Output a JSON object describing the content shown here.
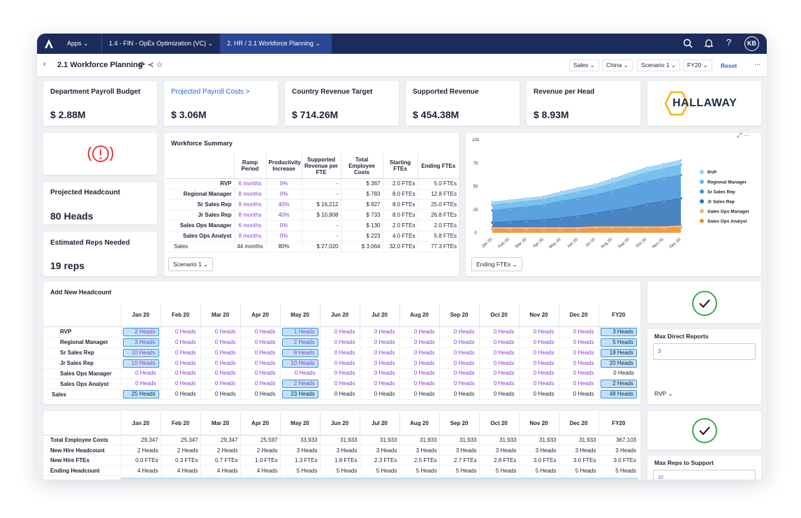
{
  "nav": {
    "apps": "Apps",
    "tabs": [
      "1.4 - FIN - OpEx Optimization (VC)",
      "2. HR / 2.1 Workforce Planning"
    ],
    "user": "KB"
  },
  "toolbar": {
    "title": "2.1 Workforce Planning",
    "filters": [
      "Sales",
      "China",
      "Scenario 1",
      "FY20"
    ],
    "reset": "Reset",
    "more": "···"
  },
  "kpis": [
    {
      "label": "Department Payroll Budget",
      "value": "$ 2.88M"
    },
    {
      "label": "Projected Payroll Costs >",
      "value": "$ 3.06M"
    },
    {
      "label": "Country Revenue Target",
      "value": "$ 714.26M"
    },
    {
      "label": "Supported Revenue",
      "value": "$ 454.38M"
    },
    {
      "label": "Revenue per Head",
      "value": "$ 8.93M"
    }
  ],
  "logo": "HALLAWAY",
  "metrics": [
    {
      "label": "Projected Headcount",
      "value": "80 Heads"
    },
    {
      "label": "Estimated Reps Needed",
      "value": "19 reps"
    }
  ],
  "workforce_summary": {
    "title": "Workforce Summary",
    "columns": [
      "Ramp Period",
      "Productivity Increase",
      "Supported Revenue per FTE",
      "Total Employee Costs",
      "Starting FTEs",
      "Ending FTEs"
    ],
    "rows": [
      {
        "label": "RVP",
        "cells": [
          "6 months",
          "0%",
          "-",
          "$ 367",
          "2.0 FTEs",
          "5.0 FTEs"
        ]
      },
      {
        "label": "Regional Manager",
        "cells": [
          "8 months",
          "0%",
          "-",
          "$ 783",
          "8.0 FTEs",
          "12.8 FTEs"
        ]
      },
      {
        "label": "Sr Sales Rep",
        "cells": [
          "8 months",
          "40%",
          "$ 16,212",
          "$ 827",
          "8.0 FTEs",
          "25.0 FTEs"
        ]
      },
      {
        "label": "Jr Sales Rep",
        "cells": [
          "8 months",
          "40%",
          "$ 10,808",
          "$ 733",
          "8.0 FTEs",
          "26.8 FTEs"
        ]
      },
      {
        "label": "Sales Ops Manager",
        "cells": [
          "6 months",
          "0%",
          "-",
          "$ 130",
          "2.0 FTEs",
          "2.0 FTEs"
        ]
      },
      {
        "label": "Sales Ops Analyst",
        "cells": [
          "8 months",
          "0%",
          "-",
          "$ 223",
          "4.0 FTEs",
          "5.8 FTEs"
        ]
      },
      {
        "label": "Sales",
        "cells": [
          "44 months",
          "80%",
          "$ 27,020",
          "$ 3,064",
          "32.0 FTEs",
          "77.3 FTEs"
        ]
      }
    ],
    "scenario": "Scenario 1"
  },
  "chart_data": {
    "type": "area",
    "stacked": true,
    "categories": [
      "Jan 20",
      "Feb 20",
      "Mar 20",
      "Apr 20",
      "May 20",
      "Jun 20",
      "Jul 20",
      "Aug 20",
      "Sep 20",
      "Oct 20",
      "Nov 20",
      "Dec 20"
    ],
    "series": [
      {
        "name": "RVP",
        "color": "#93d0f2",
        "values": [
          3,
          3,
          3,
          3,
          4,
          4,
          4,
          5,
          5,
          5,
          5,
          5
        ]
      },
      {
        "name": "Regional Manager",
        "color": "#62b5ea",
        "values": [
          6,
          6,
          6,
          6,
          6,
          7,
          7,
          8,
          9,
          10,
          10,
          11
        ]
      },
      {
        "name": "Sr Sales Rep",
        "color": "#3f92da",
        "values": [
          13,
          14,
          15,
          16,
          18,
          19,
          20,
          21,
          23,
          24,
          25,
          25
        ]
      },
      {
        "name": "Jr Sales Rep",
        "color": "#2b6fb6",
        "values": [
          5,
          6,
          7,
          8,
          10,
          12,
          14,
          17,
          20,
          24,
          27,
          29
        ]
      },
      {
        "name": "Sales Ops Manager",
        "color": "#f6b46a",
        "values": [
          2,
          2,
          2,
          2,
          2,
          2,
          2,
          2,
          2,
          2,
          2,
          2
        ]
      },
      {
        "name": "Sales Ops Analyst",
        "color": "#eb8a2e",
        "values": [
          4,
          4,
          4,
          4,
          4,
          4,
          5,
          5,
          5,
          5,
          5,
          6
        ]
      }
    ],
    "ylim": [
      0,
      100
    ],
    "yticks": [
      0,
      25,
      50,
      75,
      100
    ],
    "legend": "right",
    "control": "Ending FTEs"
  },
  "add_headcount": {
    "title": "Add New Headcount",
    "columns": [
      "Jan 20",
      "Feb 20",
      "Mar 20",
      "Apr 20",
      "May 20",
      "Jun 20",
      "Jul 20",
      "Aug 20",
      "Sep 20",
      "Oct 20",
      "Nov 20",
      "Dec 20",
      "FY20"
    ],
    "rows": [
      {
        "label": "RVP",
        "cells": [
          "2 Heads",
          "0 Heads",
          "0 Heads",
          "0 Heads",
          "1 Heads",
          "0 Heads",
          "0 Heads",
          "0 Heads",
          "0 Heads",
          "0 Heads",
          "0 Heads",
          "0 Heads",
          "3 Heads"
        ]
      },
      {
        "label": "Regional Manager",
        "cells": [
          "3 Heads",
          "0 Heads",
          "0 Heads",
          "0 Heads",
          "2 Heads",
          "0 Heads",
          "0 Heads",
          "0 Heads",
          "0 Heads",
          "0 Heads",
          "0 Heads",
          "0 Heads",
          "5 Heads"
        ]
      },
      {
        "label": "Sr Sales Rep",
        "cells": [
          "10 Heads",
          "0 Heads",
          "0 Heads",
          "0 Heads",
          "8 Heads",
          "0 Heads",
          "0 Heads",
          "0 Heads",
          "0 Heads",
          "0 Heads",
          "0 Heads",
          "0 Heads",
          "18 Heads"
        ]
      },
      {
        "label": "Jr Sales Rep",
        "cells": [
          "10 Heads",
          "0 Heads",
          "0 Heads",
          "0 Heads",
          "10 Heads",
          "0 Heads",
          "0 Heads",
          "0 Heads",
          "0 Heads",
          "0 Heads",
          "0 Heads",
          "0 Heads",
          "20 Heads"
        ]
      },
      {
        "label": "Sales Ops Manager",
        "cells": [
          "0 Heads",
          "0 Heads",
          "0 Heads",
          "0 Heads",
          "0 Heads",
          "0 Heads",
          "0 Heads",
          "0 Heads",
          "0 Heads",
          "0 Heads",
          "0 Heads",
          "0 Heads",
          "0 Heads"
        ]
      },
      {
        "label": "Sales Ops Analyst",
        "cells": [
          "0 Heads",
          "0 Heads",
          "0 Heads",
          "0 Heads",
          "2 Heads",
          "0 Heads",
          "0 Heads",
          "0 Heads",
          "0 Heads",
          "0 Heads",
          "0 Heads",
          "0 Heads",
          "2 Heads"
        ]
      },
      {
        "label": "Sales",
        "cells": [
          "25 Heads",
          "0 Heads",
          "0 Heads",
          "0 Heads",
          "23 Heads",
          "0 Heads",
          "0 Heads",
          "0 Heads",
          "0 Heads",
          "0 Heads",
          "0 Heads",
          "0 Heads",
          "48 Heads"
        ]
      }
    ]
  },
  "totals": {
    "columns": [
      "Jan 20",
      "Feb 20",
      "Mar 20",
      "Apr 20",
      "May 20",
      "Jun 20",
      "Jul 20",
      "Aug 20",
      "Sep 20",
      "Oct 20",
      "Nov 20",
      "Dec 20",
      "FY20"
    ],
    "rows": [
      {
        "label": "Total Employee Costs",
        "cells": [
          "29,347",
          "25,347",
          "29,347",
          "25,597",
          "33,933",
          "31,933",
          "31,933",
          "31,933",
          "31,933",
          "31,933",
          "31,933",
          "31,933",
          "367,103"
        ]
      },
      {
        "label": "New Hire Headcount",
        "cells": [
          "2 Heads",
          "2 Heads",
          "2 Heads",
          "2 Heads",
          "3 Heads",
          "3 Heads",
          "3 Heads",
          "3 Heads",
          "3 Heads",
          "3 Heads",
          "3 Heads",
          "3 Heads",
          "3 Heads"
        ]
      },
      {
        "label": "New Hire FTEs",
        "cells": [
          "0.0 FTEs",
          "0.3 FTEs",
          "0.7 FTEs",
          "1.0 FTEs",
          "1.3 FTEs",
          "1.8 FTEs",
          "2.3 FTEs",
          "2.5 FTEs",
          "2.7 FTEs",
          "2.8 FTEs",
          "3.0 FTEs",
          "3.0 FTEs",
          "3.0 FTEs"
        ]
      },
      {
        "label": "Ending Headcount",
        "cells": [
          "4 Heads",
          "4 Heads",
          "4 Heads",
          "4 Heads",
          "5 Heads",
          "5 Heads",
          "5 Heads",
          "5 Heads",
          "5 Heads",
          "5 Heads",
          "5 Heads",
          "5 Heads",
          "5 Heads"
        ]
      }
    ]
  },
  "settings": [
    {
      "label": "Max Direct Reports",
      "value": "3",
      "option": "RVP"
    },
    {
      "label": "Max Reps to Support",
      "value": "10"
    }
  ]
}
